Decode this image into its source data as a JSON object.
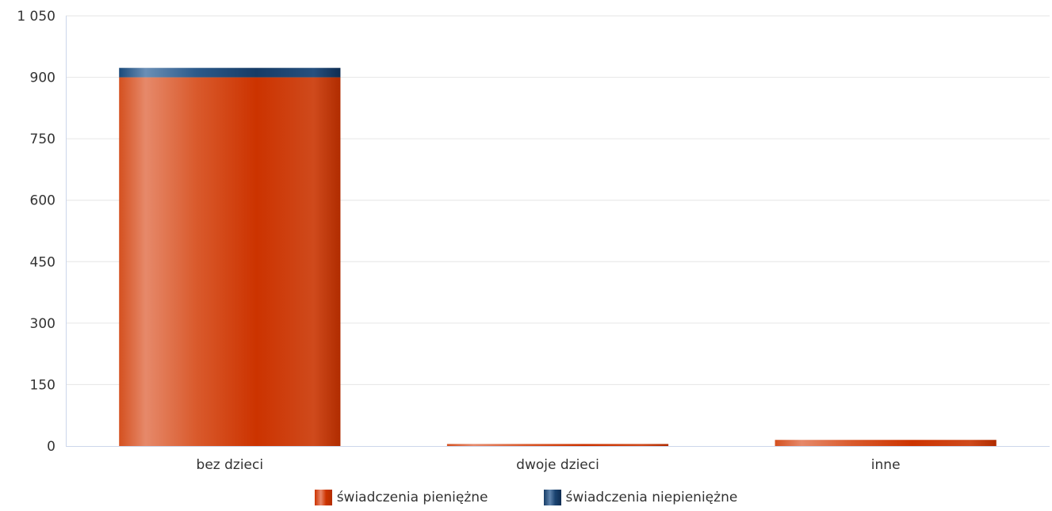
{
  "chart_data": {
    "type": "bar",
    "stacked": true,
    "categories": [
      "bez dzieci",
      "dwoje dzieci",
      "inne"
    ],
    "series": [
      {
        "name": "świadczenia pieniężne",
        "values": [
          900,
          5,
          15
        ],
        "color": "#cc3300"
      },
      {
        "name": "świadczenia niepieniężne",
        "values": [
          23,
          0,
          0
        ],
        "color": "#1a4370"
      }
    ],
    "ylim": [
      0,
      1050
    ],
    "yticks": [
      0,
      150,
      300,
      450,
      600,
      750,
      900,
      1050
    ],
    "ytick_labels": [
      "0",
      "150",
      "300",
      "450",
      "600",
      "750",
      "900",
      "1 050"
    ],
    "grid": true,
    "legend_position": "bottom"
  }
}
